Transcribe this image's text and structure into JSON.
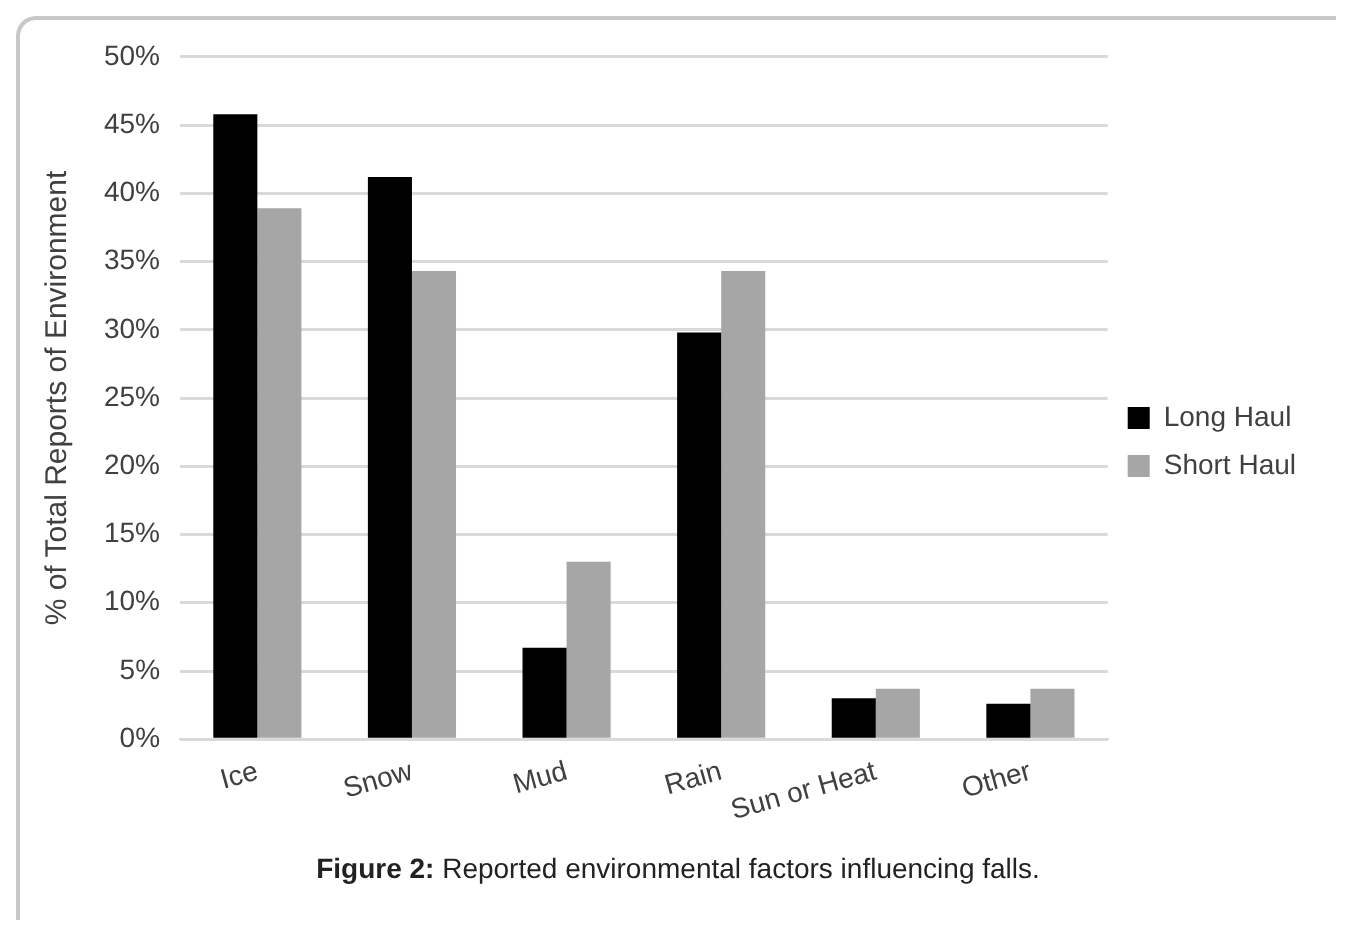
{
  "chart_data": {
    "type": "bar",
    "ylabel": "% of Total Reports of Environment",
    "categories": [
      "Ice",
      "Snow",
      "Mud",
      "Rain",
      "Sun or Heat",
      "Other"
    ],
    "series": [
      {
        "name": "Long Haul",
        "color": "#000000",
        "values": [
          45.8,
          41.2,
          6.7,
          29.8,
          3.0,
          2.6
        ]
      },
      {
        "name": "Short Haul",
        "color": "#a6a6a6",
        "values": [
          38.9,
          34.3,
          13.0,
          34.3,
          3.7,
          3.7
        ]
      }
    ],
    "ylim": [
      0,
      50
    ],
    "yticks": [
      {
        "value": 0,
        "label": "0%"
      },
      {
        "value": 5,
        "label": "5%"
      },
      {
        "value": 10,
        "label": "10%"
      },
      {
        "value": 15,
        "label": "15%"
      },
      {
        "value": 20,
        "label": "20%"
      },
      {
        "value": 25,
        "label": "25%"
      },
      {
        "value": 30,
        "label": "30%"
      },
      {
        "value": 35,
        "label": "35%"
      },
      {
        "value": 40,
        "label": "40%"
      },
      {
        "value": 45,
        "label": "45%"
      },
      {
        "value": 50,
        "label": "50%"
      }
    ],
    "grid": "y",
    "legend": "right",
    "annotations": [
      "Figure 2: Reported environmental factors influencing falls."
    ]
  }
}
